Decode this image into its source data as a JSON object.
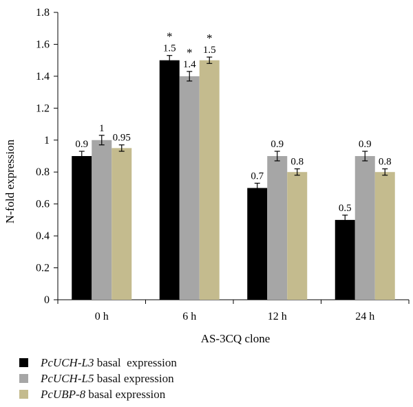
{
  "chart_data": {
    "type": "bar",
    "categories": [
      "0 h",
      "6 h",
      "12 h",
      "24 h"
    ],
    "xlabel": "AS-3CQ clone",
    "ylabel": "N-fold expression",
    "ylim": [
      0,
      1.8
    ],
    "yticks": [
      "0",
      "0.2",
      "0.4",
      "0.6",
      "0.8",
      "1",
      "1.2",
      "1.4",
      "1.6",
      "1.8"
    ],
    "grid": false,
    "legend_position": "bottom",
    "series": [
      {
        "name_italic": "PcUCH-L3",
        "name_suffix": " basal  expression",
        "color": "#000000",
        "values": [
          0.9,
          1.5,
          0.7,
          0.5
        ],
        "errors": [
          0.03,
          0.03,
          0.03,
          0.03
        ],
        "labels": [
          "0.9",
          "1.5",
          "0.7",
          "0.5"
        ],
        "significance": [
          "",
          "*",
          "",
          ""
        ]
      },
      {
        "name_italic": "PcUCH-L5",
        "name_suffix": " basal expression",
        "color": "#a6a6a6",
        "values": [
          1.0,
          1.4,
          0.9,
          0.9
        ],
        "errors": [
          0.03,
          0.03,
          0.03,
          0.03
        ],
        "labels": [
          "1",
          "1.4",
          "0.9",
          "0.9"
        ],
        "significance": [
          "",
          "*",
          "",
          ""
        ]
      },
      {
        "name_italic": "PcUBP-8",
        "name_suffix": " basal expression",
        "color": "#c4bb8e",
        "values": [
          0.95,
          1.5,
          0.8,
          0.8
        ],
        "errors": [
          0.02,
          0.02,
          0.02,
          0.02
        ],
        "labels": [
          "0.95",
          "1.5",
          "0.8",
          "0.8"
        ],
        "significance": [
          "",
          "*",
          "",
          ""
        ]
      }
    ]
  }
}
